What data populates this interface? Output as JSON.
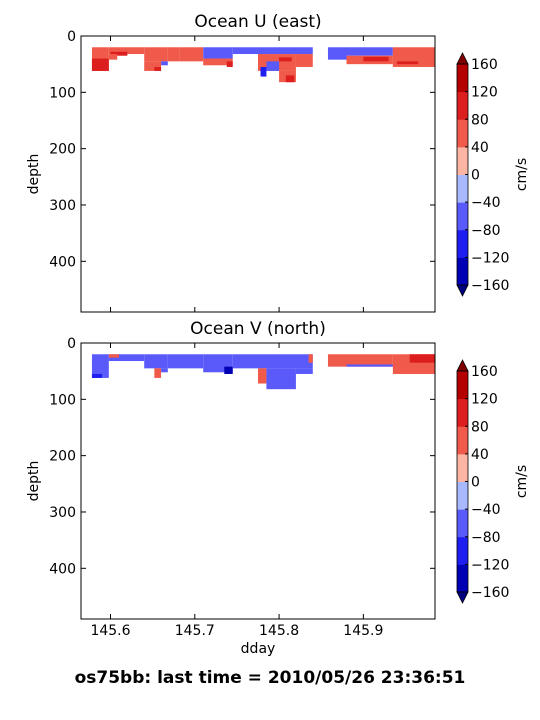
{
  "figure": {
    "caption": "os75bb: last time = 2010/05/26 23:36:51"
  },
  "chart_data": [
    {
      "type": "heatmap",
      "title": "Ocean U (east)",
      "xlabel": "",
      "ylabel": "depth",
      "xlim": [
        145.565,
        145.985
      ],
      "ylim": [
        490,
        0
      ],
      "x_ticks": [
        145.6,
        145.7,
        145.8,
        145.9
      ],
      "y_ticks": [
        0,
        100,
        200,
        300,
        400
      ],
      "colorbar": {
        "label": "cm/s",
        "ticks": [
          "160",
          "120",
          "80",
          "40",
          "0",
          "−40",
          "−80",
          "−120",
          "−160"
        ],
        "levels": [
          -160,
          -120,
          -80,
          -40,
          0,
          40,
          80,
          120,
          160
        ],
        "colors": [
          "#0000b4",
          "#1e1ef0",
          "#5a5afa",
          "#a9b9ff",
          "#fdb5a3",
          "#f05a4a",
          "#dc1e1e",
          "#b40000"
        ],
        "extend": "both"
      },
      "cells": [
        {
          "x": [
            145.578,
            145.598
          ],
          "y": [
            20,
            62
          ],
          "level": 40
        },
        {
          "x": [
            145.578,
            145.598
          ],
          "y": [
            40,
            62
          ],
          "level": 80
        },
        {
          "x": [
            145.598,
            145.64
          ],
          "y": [
            20,
            32
          ],
          "level": 40
        },
        {
          "x": [
            145.6,
            145.62
          ],
          "y": [
            28,
            35
          ],
          "level": 80
        },
        {
          "x": [
            145.598,
            145.608
          ],
          "y": [
            32,
            42
          ],
          "level": 40
        },
        {
          "x": [
            145.64,
            145.668
          ],
          "y": [
            20,
            45
          ],
          "level": 40
        },
        {
          "x": [
            145.64,
            145.66
          ],
          "y": [
            45,
            62
          ],
          "level": 40
        },
        {
          "x": [
            145.652,
            145.66
          ],
          "y": [
            55,
            62
          ],
          "level": 80
        },
        {
          "x": [
            145.66,
            145.668
          ],
          "y": [
            45,
            52
          ],
          "level": -40
        },
        {
          "x": [
            145.668,
            145.682
          ],
          "y": [
            20,
            45
          ],
          "level": 40
        },
        {
          "x": [
            145.682,
            145.71
          ],
          "y": [
            20,
            45
          ],
          "level": 40
        },
        {
          "x": [
            145.71,
            145.745
          ],
          "y": [
            20,
            40
          ],
          "level": -40
        },
        {
          "x": [
            145.71,
            145.745
          ],
          "y": [
            40,
            52
          ],
          "level": 40
        },
        {
          "x": [
            145.738,
            145.745
          ],
          "y": [
            45,
            55
          ],
          "level": 80
        },
        {
          "x": [
            145.745,
            145.775
          ],
          "y": [
            20,
            32
          ],
          "level": -40
        },
        {
          "x": [
            145.775,
            145.84
          ],
          "y": [
            20,
            32
          ],
          "level": -40
        },
        {
          "x": [
            145.775,
            145.82
          ],
          "y": [
            32,
            62
          ],
          "level": 40
        },
        {
          "x": [
            145.778,
            145.785
          ],
          "y": [
            55,
            72
          ],
          "level": -80
        },
        {
          "x": [
            145.785,
            145.8
          ],
          "y": [
            45,
            62
          ],
          "level": -40
        },
        {
          "x": [
            145.8,
            145.815
          ],
          "y": [
            38,
            45
          ],
          "level": 80
        },
        {
          "x": [
            145.8,
            145.82
          ],
          "y": [
            62,
            82
          ],
          "level": 40
        },
        {
          "x": [
            145.808,
            145.818
          ],
          "y": [
            70,
            82
          ],
          "level": 80
        },
        {
          "x": [
            145.82,
            145.84
          ],
          "y": [
            32,
            55
          ],
          "level": 40
        },
        {
          "x": [
            145.858,
            145.88
          ],
          "y": [
            20,
            42
          ],
          "level": -40
        },
        {
          "x": [
            145.88,
            145.935
          ],
          "y": [
            20,
            35
          ],
          "level": -40
        },
        {
          "x": [
            145.88,
            145.935
          ],
          "y": [
            35,
            50
          ],
          "level": 40
        },
        {
          "x": [
            145.9,
            145.93
          ],
          "y": [
            37,
            45
          ],
          "level": 80
        },
        {
          "x": [
            145.935,
            145.985
          ],
          "y": [
            20,
            55
          ],
          "level": 40
        },
        {
          "x": [
            145.94,
            145.965
          ],
          "y": [
            45,
            50
          ],
          "level": 80
        }
      ]
    },
    {
      "type": "heatmap",
      "title": "Ocean V (north)",
      "xlabel": "dday",
      "ylabel": "depth",
      "xlim": [
        145.565,
        145.985
      ],
      "ylim": [
        490,
        0
      ],
      "x_ticks": [
        145.6,
        145.7,
        145.8,
        145.9
      ],
      "x_tick_labels": [
        "145.6",
        "145.7",
        "145.8",
        "145.9"
      ],
      "y_ticks": [
        0,
        100,
        200,
        300,
        400
      ],
      "colorbar": {
        "label": "cm/s",
        "ticks": [
          "160",
          "120",
          "80",
          "40",
          "0",
          "−40",
          "−80",
          "−120",
          "−160"
        ],
        "levels": [
          -160,
          -120,
          -80,
          -40,
          0,
          40,
          80,
          120,
          160
        ],
        "colors": [
          "#0000b4",
          "#1e1ef0",
          "#5a5afa",
          "#a9b9ff",
          "#fdb5a3",
          "#f05a4a",
          "#dc1e1e",
          "#b40000"
        ],
        "extend": "both"
      },
      "cells": [
        {
          "x": [
            145.578,
            145.598
          ],
          "y": [
            20,
            62
          ],
          "level": -40
        },
        {
          "x": [
            145.578,
            145.59
          ],
          "y": [
            55,
            62
          ],
          "level": -80
        },
        {
          "x": [
            145.598,
            145.64
          ],
          "y": [
            20,
            32
          ],
          "level": -40
        },
        {
          "x": [
            145.598,
            145.61
          ],
          "y": [
            20,
            26
          ],
          "level": 40
        },
        {
          "x": [
            145.64,
            145.668
          ],
          "y": [
            20,
            45
          ],
          "level": -40
        },
        {
          "x": [
            145.652,
            145.66
          ],
          "y": [
            45,
            62
          ],
          "level": 40
        },
        {
          "x": [
            145.66,
            145.668
          ],
          "y": [
            45,
            52
          ],
          "level": -40
        },
        {
          "x": [
            145.668,
            145.71
          ],
          "y": [
            20,
            45
          ],
          "level": -40
        },
        {
          "x": [
            145.71,
            145.745
          ],
          "y": [
            20,
            52
          ],
          "level": -40
        },
        {
          "x": [
            145.735,
            145.745
          ],
          "y": [
            42,
            55
          ],
          "level": -120
        },
        {
          "x": [
            145.745,
            145.84
          ],
          "y": [
            20,
            45
          ],
          "level": -40
        },
        {
          "x": [
            145.775,
            145.785
          ],
          "y": [
            45,
            72
          ],
          "level": 40
        },
        {
          "x": [
            145.785,
            145.82
          ],
          "y": [
            45,
            82
          ],
          "level": -40
        },
        {
          "x": [
            145.82,
            145.84
          ],
          "y": [
            45,
            55
          ],
          "level": -40
        },
        {
          "x": [
            145.835,
            145.84
          ],
          "y": [
            20,
            35
          ],
          "level": 40
        },
        {
          "x": [
            145.858,
            145.88
          ],
          "y": [
            20,
            42
          ],
          "level": 40
        },
        {
          "x": [
            145.88,
            145.935
          ],
          "y": [
            20,
            42
          ],
          "level": 40
        },
        {
          "x": [
            145.88,
            145.935
          ],
          "y": [
            38,
            42
          ],
          "level": -40
        },
        {
          "x": [
            145.935,
            145.985
          ],
          "y": [
            20,
            55
          ],
          "level": 40
        },
        {
          "x": [
            145.955,
            145.985
          ],
          "y": [
            20,
            35
          ],
          "level": 80
        }
      ]
    }
  ]
}
